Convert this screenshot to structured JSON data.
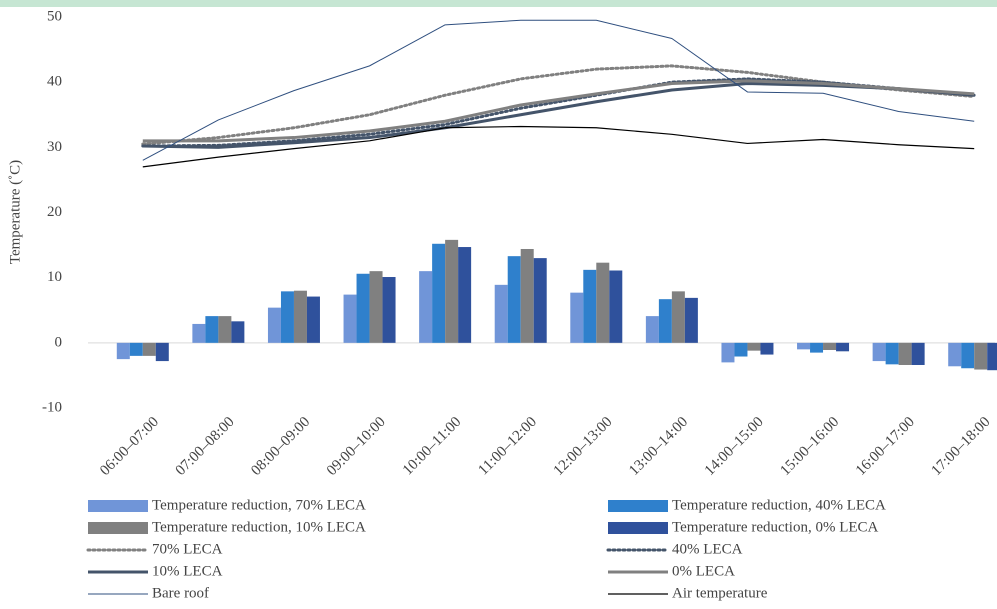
{
  "chart_data": {
    "type": "combo",
    "y_label": "Temperature (˚C)",
    "categories": [
      "06:00–07:00",
      "07:00–08:00",
      "08:00–09:00",
      "09:00–10:00",
      "10:00–11:00",
      "11:00–12:00",
      "12:00–13:00",
      "13:00–14:00",
      "14:00–15:00",
      "15:00–16:00",
      "16:00–17:00",
      "17:00–18:00"
    ],
    "ylim": [
      -10,
      50
    ],
    "yticks": [
      -10,
      0,
      10,
      20,
      30,
      40,
      50
    ],
    "grid": false,
    "series": [
      {
        "name": "Temperature reduction, 70% LECA",
        "type": "bar",
        "color": "#7095d8",
        "values": [
          -2.5,
          2.9,
          5.4,
          7.4,
          11.0,
          8.9,
          7.7,
          4.1,
          -3.0,
          -1.0,
          -2.8,
          -3.6
        ]
      },
      {
        "name": "Temperature reduction, 40% LECA",
        "type": "bar",
        "color": "#2f80cc",
        "values": [
          -2.0,
          4.1,
          7.9,
          10.6,
          15.2,
          13.3,
          11.2,
          6.7,
          -2.1,
          -1.5,
          -3.3,
          -3.9
        ]
      },
      {
        "name": "Temperature reduction, 10% LECA",
        "type": "bar",
        "color": "#808080",
        "values": [
          -2.0,
          4.1,
          8.0,
          11.0,
          15.8,
          14.4,
          12.3,
          7.9,
          -1.2,
          -1.1,
          -3.4,
          -4.1
        ]
      },
      {
        "name": "Temperature reduction, 0% LECA",
        "type": "bar",
        "color": "#2f519c",
        "values": [
          -2.8,
          3.3,
          7.1,
          10.1,
          14.7,
          13.0,
          11.1,
          6.9,
          -1.8,
          -1.3,
          -3.4,
          -4.2
        ]
      },
      {
        "name": "70% LECA",
        "type": "line",
        "color": "#808080",
        "dash": "dotted",
        "width": 3,
        "values": [
          30.5,
          31.5,
          33.0,
          35.0,
          38.0,
          40.5,
          42.0,
          42.5,
          41.5,
          40.0,
          38.8,
          37.8
        ]
      },
      {
        "name": "40% LECA",
        "type": "line",
        "color": "#44546a",
        "dash": "dotted",
        "width": 3,
        "values": [
          30.2,
          30.3,
          31.0,
          32.0,
          33.5,
          36.0,
          38.0,
          40.0,
          40.5,
          40.0,
          39.0,
          38.0
        ]
      },
      {
        "name": "10% LECA",
        "type": "line",
        "color": "#44546a",
        "dash": "solid",
        "width": 3,
        "values": [
          30.2,
          30.0,
          30.7,
          31.5,
          33.0,
          35.0,
          37.0,
          38.8,
          39.8,
          39.5,
          39.0,
          38.0
        ]
      },
      {
        "name": "0% LECA",
        "type": "line",
        "color": "#808080",
        "dash": "solid",
        "width": 3,
        "values": [
          31.0,
          31.0,
          31.5,
          32.5,
          34.0,
          36.5,
          38.2,
          39.8,
          40.2,
          39.8,
          39.0,
          38.2
        ]
      },
      {
        "name": "Bare roof",
        "type": "line",
        "color": "#2f4f7f",
        "dash": "solid",
        "width": 1,
        "values": [
          28.0,
          34.2,
          38.7,
          42.5,
          48.8,
          49.5,
          49.5,
          46.7,
          38.5,
          38.3,
          35.5,
          34.0
        ]
      },
      {
        "name": "Air temperature",
        "type": "line",
        "color": "#000000",
        "dash": "solid",
        "width": 1.2,
        "values": [
          27.0,
          28.5,
          29.8,
          31.0,
          33.0,
          33.2,
          33.0,
          32.0,
          30.6,
          31.2,
          30.4,
          29.8
        ]
      }
    ]
  }
}
